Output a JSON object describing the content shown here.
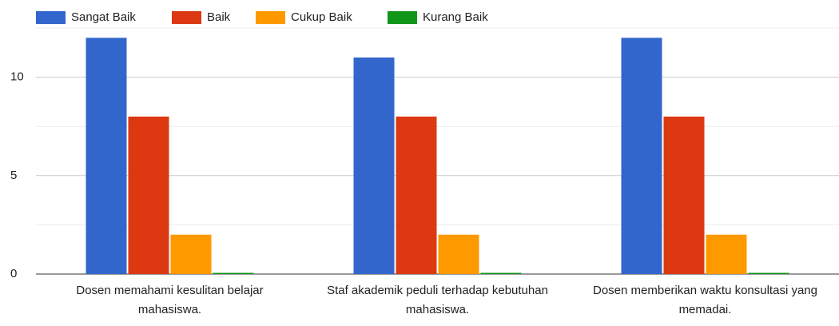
{
  "chart_data": {
    "type": "bar",
    "categories": [
      "Dosen memahami kesulitan belajar mahasiswa.",
      "Staf akademik peduli terhadap kebutuhan mahasiswa.",
      "Dosen memberikan waktu konsultasi yang memadai."
    ],
    "series": [
      {
        "name": "Sangat Baik",
        "color": "#3366cc",
        "values": [
          12,
          11,
          12
        ]
      },
      {
        "name": "Baik",
        "color": "#dc3912",
        "values": [
          8,
          8,
          8
        ]
      },
      {
        "name": "Cukup Baik",
        "color": "#ff9900",
        "values": [
          2,
          2,
          2
        ]
      },
      {
        "name": "Kurang Baik",
        "color": "#109618",
        "values": [
          0,
          0,
          0
        ]
      }
    ],
    "ylim": [
      0,
      12.5
    ],
    "yticks": [
      0,
      5,
      10
    ],
    "yminorticks": [
      2.5,
      7.5,
      12.5
    ],
    "grid": true,
    "legend": "top"
  }
}
